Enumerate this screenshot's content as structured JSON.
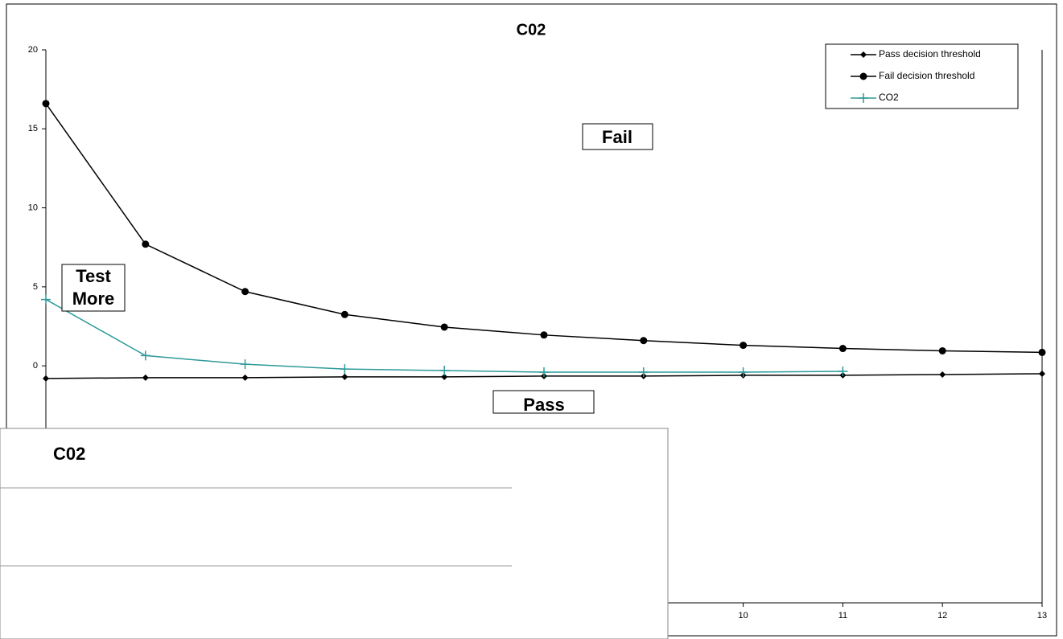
{
  "chart_data": {
    "type": "line",
    "title": "C02",
    "x": [
      3,
      4,
      5,
      6,
      7,
      8,
      9,
      10,
      11,
      12,
      13
    ],
    "xlim": [
      3,
      13
    ],
    "xticks": [
      10,
      11,
      12,
      13
    ],
    "ylim": [
      -15,
      20
    ],
    "yticks": [
      0,
      5,
      10,
      15,
      20
    ],
    "series": [
      {
        "name": "Pass decision threshold",
        "color": "#000000",
        "marker": "diamond",
        "values": [
          -0.8,
          -0.75,
          -0.75,
          -0.7,
          -0.7,
          -0.65,
          -0.65,
          -0.6,
          -0.6,
          -0.55,
          -0.5
        ]
      },
      {
        "name": "Fail decision threshold",
        "color": "#000000",
        "marker": "circle",
        "values": [
          16.6,
          7.7,
          4.7,
          3.25,
          2.45,
          1.95,
          1.6,
          1.3,
          1.1,
          0.95,
          0.85
        ]
      },
      {
        "name": "CO2",
        "color": "#2e9a9a",
        "marker": "plus",
        "values": [
          4.2,
          0.65,
          0.1,
          -0.2,
          -0.3,
          -0.4,
          -0.4,
          -0.4,
          -0.35,
          null,
          null
        ]
      }
    ],
    "legend": "top-right",
    "annotations": [
      "Fail",
      "Test\nMore",
      "Pass"
    ]
  },
  "overlay": {
    "title": "C02"
  }
}
